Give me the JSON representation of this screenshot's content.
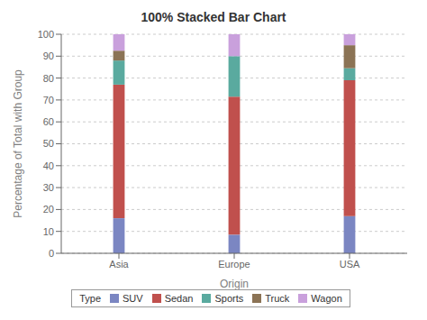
{
  "chart_data": {
    "type": "bar",
    "title": "100% Stacked Bar Chart",
    "xlabel": "Origin",
    "ylabel": "Percentage of Total with Group",
    "categories": [
      "Asia",
      "Europe",
      "USA"
    ],
    "series": [
      {
        "name": "SUV",
        "color": "#7b86c2",
        "values": [
          16.0,
          8.5,
          17.0
        ]
      },
      {
        "name": "Sedan",
        "color": "#c0504d",
        "values": [
          61.0,
          63.0,
          62.0
        ]
      },
      {
        "name": "Sports",
        "color": "#5aaa9f",
        "values": [
          11.0,
          18.5,
          5.5
        ]
      },
      {
        "name": "Truck",
        "color": "#8b7355",
        "values": [
          4.5,
          0.0,
          10.5
        ]
      },
      {
        "name": "Wagon",
        "color": "#c9a0dc",
        "values": [
          7.5,
          10.0,
          5.0
        ]
      }
    ],
    "ylim": [
      0,
      100
    ],
    "yticks": [
      0,
      10,
      20,
      30,
      40,
      50,
      60,
      70,
      80,
      90,
      100
    ],
    "stacked": true,
    "grid": true,
    "legend": "bottom",
    "legend_title": "Type"
  }
}
